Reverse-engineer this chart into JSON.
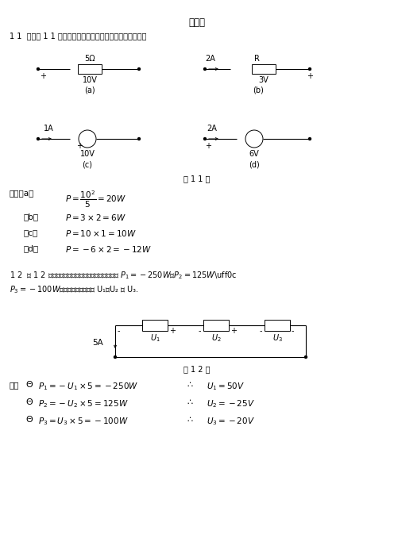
{
  "bg_color": "#ffffff",
  "title": "习题一",
  "s1_header": "1 1  根据题 1 1 图中给定的数值，计算各元件吸收的功率。",
  "fig11_cap": "题 1 1 图",
  "s2_line1": "1 2  题 1 2 图示电路，已知各元件发出的功率分别为",
  "s2_line2": "，求各元件上的电压 U₁、U₂ 及 U₃.",
  "fig12_cap": "题 1 2 图",
  "jie": "解：",
  "jie_a": "解：（a）",
  "b_label": "（b）",
  "c_label": "（c）",
  "d_label": "（d）",
  "sol_jie": "解："
}
